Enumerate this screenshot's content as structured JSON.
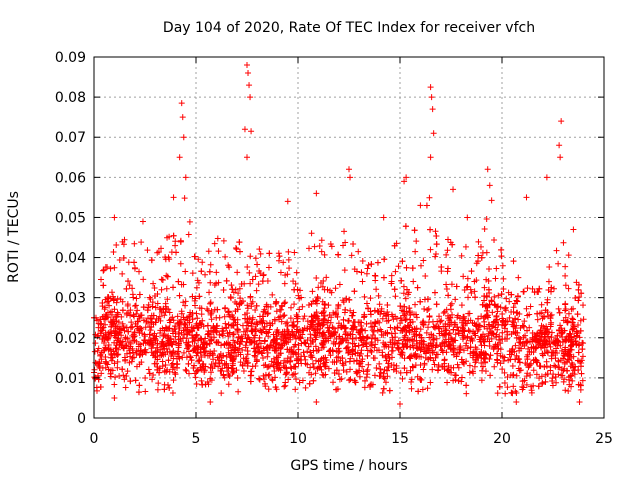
{
  "chart_data": {
    "type": "scatter",
    "title": "Day 104 of 2020, Rate Of TEC Index for receiver vfch",
    "xlabel": "GPS time / hours",
    "ylabel": "ROTI / TECUs",
    "xlim": [
      0,
      25
    ],
    "ylim": [
      0,
      0.09
    ],
    "x_ticks": [
      0,
      5,
      10,
      15,
      20,
      25
    ],
    "y_ticks": [
      0,
      0.01,
      0.02,
      0.03,
      0.04,
      0.05,
      0.06,
      0.07,
      0.08,
      0.09
    ],
    "x_tick_labels": [
      "0",
      "5",
      "10",
      "15",
      "20",
      "25"
    ],
    "y_tick_labels": [
      "0",
      "0.01",
      "0.02",
      "0.03",
      "0.04",
      "0.05",
      "0.06",
      "0.07",
      "0.08",
      "0.09"
    ],
    "grid": true,
    "marker": "+",
    "series_color": "#ff0000",
    "envelope": {
      "hours": [
        0,
        1,
        2,
        3,
        4,
        4.5,
        5,
        6,
        7,
        7.5,
        8,
        9,
        10,
        10.5,
        11,
        12,
        12.5,
        13,
        14,
        15,
        15.5,
        16,
        16.5,
        17,
        18,
        19,
        19.5,
        20,
        21,
        22,
        23,
        24
      ],
      "upper": [
        0.03,
        0.045,
        0.045,
        0.042,
        0.05,
        0.06,
        0.04,
        0.045,
        0.045,
        0.06,
        0.045,
        0.042,
        0.048,
        0.05,
        0.048,
        0.045,
        0.055,
        0.042,
        0.04,
        0.045,
        0.055,
        0.045,
        0.06,
        0.045,
        0.045,
        0.045,
        0.055,
        0.045,
        0.035,
        0.035,
        0.045,
        0.03
      ],
      "center": [
        0.017,
        0.02,
        0.019,
        0.018,
        0.019,
        0.021,
        0.018,
        0.018,
        0.019,
        0.02,
        0.019,
        0.018,
        0.02,
        0.021,
        0.02,
        0.019,
        0.02,
        0.018,
        0.018,
        0.018,
        0.02,
        0.019,
        0.021,
        0.019,
        0.019,
        0.02,
        0.021,
        0.019,
        0.017,
        0.017,
        0.018,
        0.017
      ]
    },
    "outliers": [
      [
        1.0,
        0.05
      ],
      [
        2.4,
        0.049
      ],
      [
        3.9,
        0.055
      ],
      [
        4.2,
        0.065
      ],
      [
        4.3,
        0.0785
      ],
      [
        4.35,
        0.075
      ],
      [
        4.4,
        0.07
      ],
      [
        4.5,
        0.06
      ],
      [
        7.4,
        0.072
      ],
      [
        7.5,
        0.088
      ],
      [
        7.55,
        0.086
      ],
      [
        7.6,
        0.083
      ],
      [
        7.65,
        0.08
      ],
      [
        7.7,
        0.0715
      ],
      [
        7.5,
        0.065
      ],
      [
        9.5,
        0.054
      ],
      [
        10.9,
        0.056
      ],
      [
        12.5,
        0.062
      ],
      [
        12.55,
        0.06
      ],
      [
        14.2,
        0.05
      ],
      [
        15.2,
        0.059
      ],
      [
        15.3,
        0.06
      ],
      [
        16.0,
        0.053
      ],
      [
        16.5,
        0.0825
      ],
      [
        16.55,
        0.08
      ],
      [
        16.6,
        0.077
      ],
      [
        16.65,
        0.071
      ],
      [
        16.5,
        0.065
      ],
      [
        17.6,
        0.057
      ],
      [
        18.3,
        0.05
      ],
      [
        19.3,
        0.062
      ],
      [
        19.4,
        0.058
      ],
      [
        20.8,
        0.035
      ],
      [
        21.2,
        0.055
      ],
      [
        22.2,
        0.06
      ],
      [
        22.9,
        0.074
      ],
      [
        22.8,
        0.068
      ],
      [
        22.85,
        0.065
      ],
      [
        23.5,
        0.047
      ],
      [
        23.8,
        0.004
      ],
      [
        10.9,
        0.004
      ],
      [
        15.0,
        0.0035
      ],
      [
        20.7,
        0.004
      ],
      [
        5.7,
        0.004
      ],
      [
        1.0,
        0.005
      ]
    ]
  }
}
